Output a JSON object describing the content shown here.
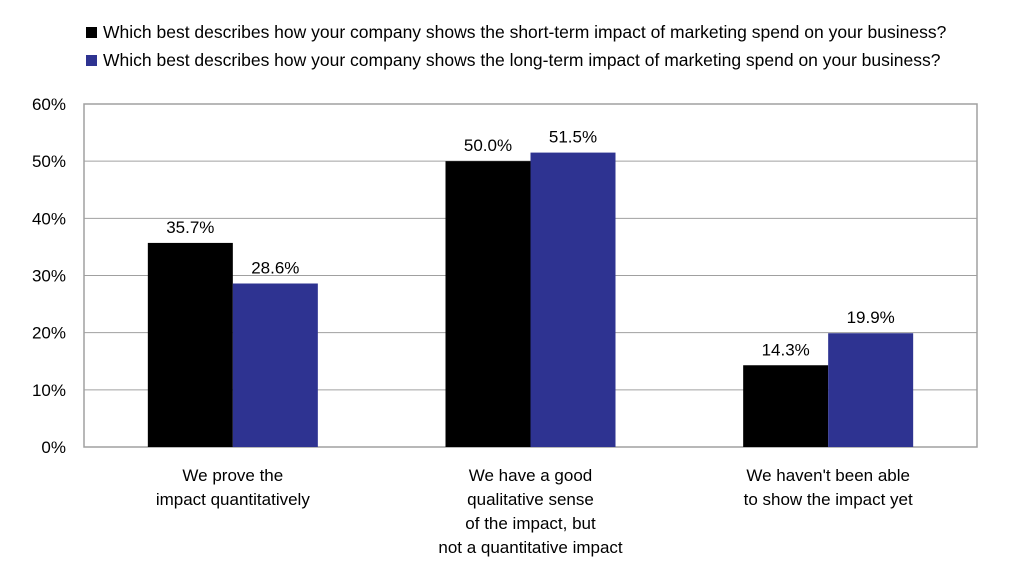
{
  "chart_data": {
    "type": "bar",
    "categories": [
      [
        "We prove the",
        "impact quantitatively"
      ],
      [
        "We have a good",
        "qualitative sense",
        "of the impact, but",
        "not a quantitative impact"
      ],
      [
        "We haven't been able",
        "to show the impact yet"
      ]
    ],
    "series": [
      {
        "name": "Which best describes how your company shows the short-term impact of marketing spend on your business?",
        "color": "#000000",
        "values": [
          35.7,
          50.0,
          14.3
        ],
        "labels": [
          "35.7%",
          "50.0%",
          "14.3%"
        ]
      },
      {
        "name": "Which best describes how your company shows the long-term impact of marketing spend on your business?",
        "color": "#2e3391",
        "values": [
          28.6,
          51.5,
          19.9
        ],
        "labels": [
          "28.6%",
          "51.5%",
          "19.9%"
        ]
      }
    ],
    "ylim": [
      0,
      60
    ],
    "yticks": [
      "0%",
      "10%",
      "20%",
      "30%",
      "40%",
      "50%",
      "60%"
    ],
    "grid": true,
    "legend": "top"
  }
}
